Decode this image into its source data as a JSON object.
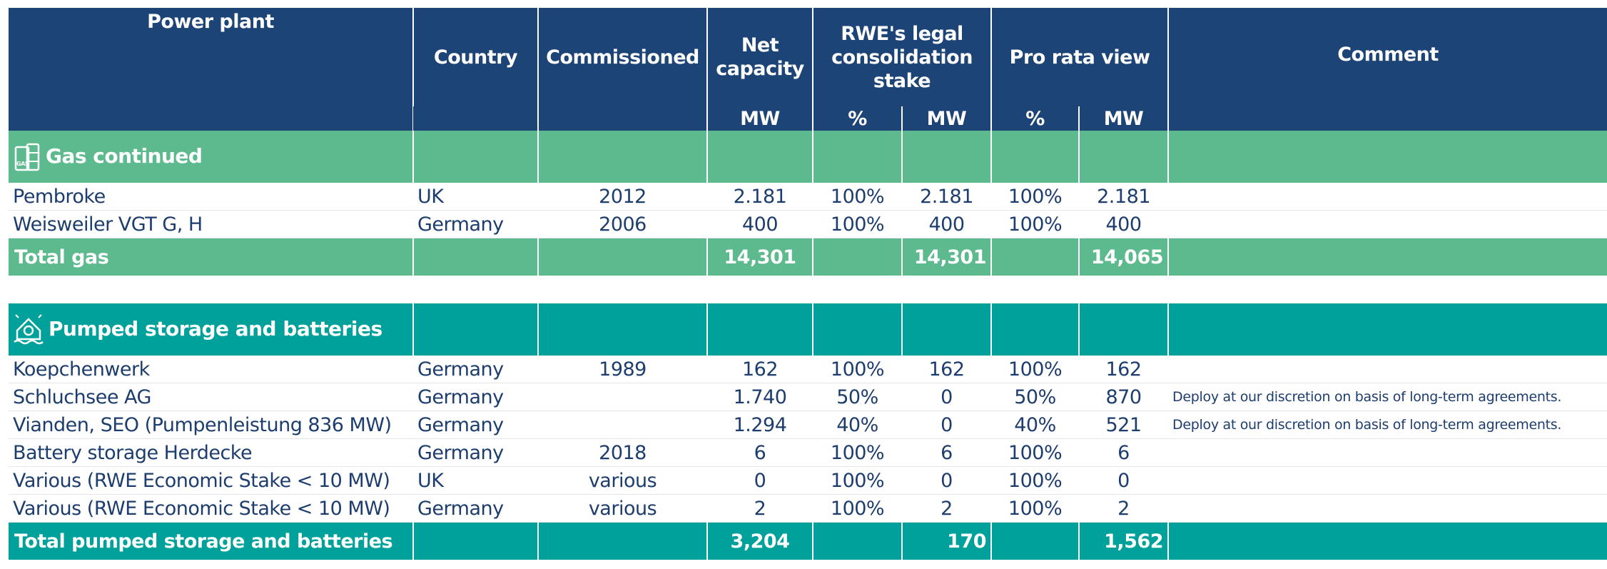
{
  "header": {
    "columns": [
      "Power plant",
      "Country",
      "Commissioned",
      "Net capacity",
      "RWE's legal consolidation stake",
      "Pro rata view",
      "Comment"
    ],
    "units": [
      "MW",
      "%",
      "MW",
      "%",
      "MW"
    ]
  },
  "sections": [
    {
      "title": "Gas continued",
      "rows": [
        {
          "plant": "Pembroke",
          "country": "UK",
          "commissioned": "2012",
          "net": "2.181",
          "legal_pct": "100%",
          "legal_mw": "2.181",
          "pro_pct": "100%",
          "pro_mw": "2.181"
        },
        {
          "plant": "Weisweiler VGT G, H",
          "country": "Germany",
          "commissioned": "2006",
          "net": "400",
          "legal_pct": "100%",
          "legal_mw": "400",
          "pro_pct": "100%",
          "pro_mw": "400"
        }
      ],
      "total": {
        "label": "Total gas",
        "net": "14,301",
        "legal_mw": "14,301",
        "pro_mw": "14,065"
      }
    },
    {
      "title": "Pumped storage and batteries",
      "rows": [
        {
          "plant": "Koepchenwerk",
          "country": "Germany",
          "commissioned": "1989",
          "net": "162",
          "legal_pct": "100%",
          "legal_mw": "162",
          "pro_pct": "100%",
          "pro_mw": "162"
        },
        {
          "plant": "Schluchsee AG",
          "country": "Germany",
          "net": "1.740",
          "legal_pct": "50%",
          "legal_mw": "0",
          "pro_pct": "50%",
          "pro_mw": "870",
          "comment": "Deploy at our discretion on basis of long-term agreements."
        },
        {
          "plant": "Vianden, SEO (Pumpenleistung 836 MW)",
          "country": "Germany",
          "net": "1.294",
          "legal_pct": "40%",
          "legal_mw": "0",
          "pro_pct": "40%",
          "pro_mw": "521",
          "comment": "Deploy at our discretion on basis of long-term agreements."
        },
        {
          "plant": "Battery storage Herdecke",
          "country": "Germany",
          "commissioned": "2018",
          "net": "6",
          "legal_pct": "100%",
          "legal_mw": "6",
          "pro_pct": "100%",
          "pro_mw": "6"
        },
        {
          "plant": "Various (RWE Economic Stake < 10 MW)",
          "country": "UK",
          "commissioned": "various",
          "net": "0",
          "legal_pct": "100%",
          "legal_mw": "0",
          "pro_pct": "100%",
          "pro_mw": "0"
        },
        {
          "plant": "Various (RWE Economic Stake < 10 MW)",
          "country": "Germany",
          "commissioned": "various",
          "net": "2",
          "legal_pct": "100%",
          "legal_mw": "2",
          "pro_pct": "100%",
          "pro_mw": "2"
        }
      ],
      "total": {
        "label": "Total pumped storage and batteries",
        "net": "3,204",
        "legal_mw": "170",
        "pro_mw": "1,562"
      }
    }
  ]
}
